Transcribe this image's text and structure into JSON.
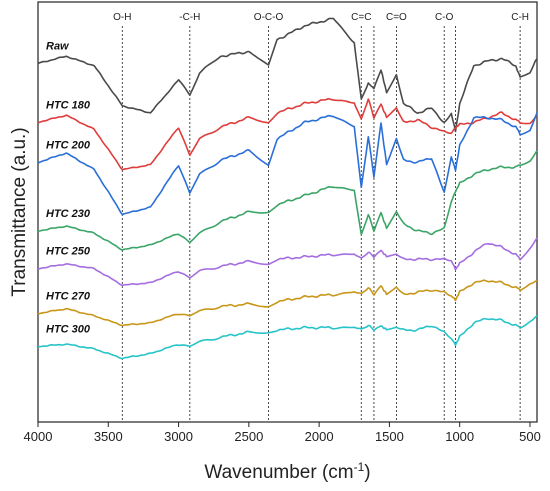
{
  "chart_data": {
    "type": "line",
    "xlabel": "Wavenumber (cm",
    "xlabel_sup": "-1",
    "xlabel_close": ")",
    "ylabel": "Transmittance (a.u.)",
    "xlim": [
      4000,
      450
    ],
    "x_reversed": true,
    "x_ticks": [
      4000,
      3500,
      3000,
      2500,
      2000,
      1500,
      1000,
      500
    ],
    "y_ticks_shown": false,
    "grid": false,
    "reference_lines": [
      {
        "label": "O-H",
        "x": 3400
      },
      {
        "label": "-C-H",
        "x": 2920
      },
      {
        "label": "O-C-O",
        "x": 2360
      },
      {
        "label": "C=C",
        "x": 1700
      },
      {
        "label": "",
        "x": 1610
      },
      {
        "label": "C=O",
        "x": 1450
      },
      {
        "label": "C-O",
        "x": 1110
      },
      {
        "label": "",
        "x": 1030
      },
      {
        "label": "C-H",
        "x": 570
      }
    ],
    "series": [
      {
        "name": "Raw",
        "color": "#4a4a4a",
        "x": [
          4000,
          3800,
          3600,
          3400,
          3200,
          3000,
          2920,
          2850,
          2700,
          2500,
          2360,
          2300,
          2100,
          1900,
          1750,
          1700,
          1650,
          1610,
          1560,
          1520,
          1450,
          1400,
          1300,
          1200,
          1110,
          1060,
          1030,
          1000,
          900,
          800,
          700,
          600,
          570,
          500,
          450
        ],
        "y": [
          7.1,
          7.25,
          7.05,
          6.2,
          6.05,
          6.75,
          6.45,
          6.9,
          7.25,
          7.35,
          7.05,
          7.6,
          7.9,
          8.05,
          7.55,
          6.35,
          6.7,
          6.55,
          6.95,
          6.5,
          6.85,
          6.25,
          6.05,
          6.15,
          5.85,
          6.05,
          5.65,
          6.25,
          7.05,
          7.15,
          7.2,
          7.05,
          6.8,
          6.9,
          7.2
        ]
      },
      {
        "name": "HTC 180",
        "color": "#e03c3c",
        "x": [
          4000,
          3800,
          3600,
          3400,
          3200,
          3000,
          2920,
          2850,
          2700,
          2500,
          2360,
          2300,
          2100,
          1900,
          1750,
          1700,
          1650,
          1610,
          1560,
          1520,
          1450,
          1400,
          1300,
          1200,
          1110,
          1060,
          1030,
          1000,
          900,
          800,
          700,
          600,
          570,
          500,
          450
        ],
        "y": [
          5.85,
          6.0,
          5.7,
          4.85,
          4.95,
          5.75,
          5.15,
          5.5,
          5.75,
          5.95,
          5.85,
          6.05,
          6.25,
          6.35,
          6.25,
          5.9,
          6.35,
          5.95,
          6.25,
          5.95,
          6.15,
          5.85,
          5.9,
          5.75,
          5.65,
          5.6,
          5.75,
          5.8,
          5.85,
          5.95,
          6.05,
          5.9,
          5.85,
          5.85,
          6.0
        ]
      },
      {
        "name": "HTC 200",
        "color": "#2a6fd8",
        "x": [
          4000,
          3800,
          3600,
          3400,
          3200,
          3000,
          2920,
          2850,
          2700,
          2500,
          2360,
          2300,
          2100,
          1900,
          1750,
          1700,
          1650,
          1610,
          1560,
          1520,
          1450,
          1400,
          1300,
          1200,
          1110,
          1060,
          1030,
          1000,
          900,
          800,
          700,
          600,
          570,
          500,
          450
        ],
        "y": [
          5.0,
          5.2,
          4.85,
          3.9,
          4.05,
          4.95,
          4.35,
          4.75,
          5.05,
          5.25,
          4.95,
          5.5,
          5.85,
          6.0,
          5.75,
          4.45,
          5.55,
          4.7,
          5.85,
          4.95,
          5.5,
          5.05,
          5.0,
          5.1,
          4.35,
          5.1,
          4.85,
          5.35,
          5.95,
          5.95,
          5.9,
          5.75,
          5.6,
          5.7,
          6.05
        ]
      },
      {
        "name": "HTC 230",
        "color": "#3aa566",
        "x": [
          4000,
          3800,
          3600,
          3400,
          3200,
          3000,
          2920,
          2850,
          2700,
          2500,
          2360,
          2300,
          2100,
          1900,
          1750,
          1700,
          1650,
          1610,
          1560,
          1520,
          1450,
          1400,
          1300,
          1200,
          1110,
          1060,
          1030,
          1000,
          900,
          800,
          700,
          600,
          570,
          500,
          450
        ],
        "y": [
          3.55,
          3.65,
          3.5,
          3.15,
          3.25,
          3.5,
          3.3,
          3.5,
          3.75,
          3.95,
          3.95,
          4.1,
          4.3,
          4.5,
          4.4,
          3.45,
          3.9,
          3.55,
          3.95,
          3.6,
          3.95,
          3.7,
          3.55,
          3.5,
          3.6,
          4.15,
          4.4,
          4.55,
          4.75,
          4.85,
          4.9,
          4.9,
          4.95,
          5.05,
          5.25
        ]
      },
      {
        "name": "HTC 250",
        "color": "#a56ee0",
        "x": [
          4000,
          3800,
          3600,
          3400,
          3200,
          3000,
          2920,
          2850,
          2700,
          2500,
          2360,
          2300,
          2100,
          1900,
          1750,
          1700,
          1650,
          1610,
          1560,
          1520,
          1450,
          1400,
          1300,
          1200,
          1110,
          1060,
          1030,
          1000,
          900,
          800,
          700,
          600,
          570,
          500,
          450
        ],
        "y": [
          2.75,
          2.85,
          2.75,
          2.4,
          2.45,
          2.7,
          2.55,
          2.7,
          2.8,
          2.9,
          2.85,
          2.95,
          3.0,
          3.05,
          3.05,
          2.95,
          3.1,
          3.0,
          3.15,
          3.0,
          3.05,
          2.95,
          2.95,
          2.95,
          2.95,
          2.9,
          2.75,
          2.85,
          3.1,
          3.3,
          3.2,
          3.05,
          2.95,
          3.2,
          3.4
        ]
      },
      {
        "name": "HTC 270",
        "color": "#c8971a",
        "x": [
          4000,
          3800,
          3600,
          3400,
          3200,
          3000,
          2920,
          2850,
          2700,
          2500,
          2360,
          2300,
          2100,
          1900,
          1750,
          1700,
          1650,
          1610,
          1560,
          1520,
          1450,
          1400,
          1300,
          1200,
          1110,
          1060,
          1030,
          1000,
          900,
          800,
          700,
          600,
          570,
          500,
          450
        ],
        "y": [
          1.8,
          1.9,
          1.75,
          1.55,
          1.6,
          1.8,
          1.75,
          1.85,
          1.95,
          2.0,
          1.95,
          2.05,
          2.15,
          2.2,
          2.25,
          2.2,
          2.35,
          2.2,
          2.4,
          2.2,
          2.35,
          2.2,
          2.25,
          2.3,
          2.25,
          2.15,
          2.1,
          2.25,
          2.45,
          2.5,
          2.45,
          2.35,
          2.3,
          2.45,
          2.5
        ]
      },
      {
        "name": "HTC 300",
        "color": "#26c4c8",
        "x": [
          4000,
          3800,
          3600,
          3400,
          3200,
          3000,
          2920,
          2850,
          2700,
          2500,
          2360,
          2300,
          2100,
          1900,
          1750,
          1700,
          1650,
          1610,
          1560,
          1520,
          1450,
          1400,
          1300,
          1200,
          1110,
          1060,
          1030,
          1000,
          900,
          800,
          700,
          600,
          570,
          500,
          450
        ],
        "y": [
          1.1,
          1.15,
          1.05,
          0.85,
          0.95,
          1.15,
          1.1,
          1.2,
          1.3,
          1.4,
          1.4,
          1.45,
          1.5,
          1.5,
          1.5,
          1.45,
          1.55,
          1.45,
          1.55,
          1.45,
          1.5,
          1.45,
          1.45,
          1.55,
          1.4,
          1.25,
          1.15,
          1.3,
          1.6,
          1.7,
          1.65,
          1.55,
          1.5,
          1.65,
          1.75
        ]
      }
    ]
  }
}
